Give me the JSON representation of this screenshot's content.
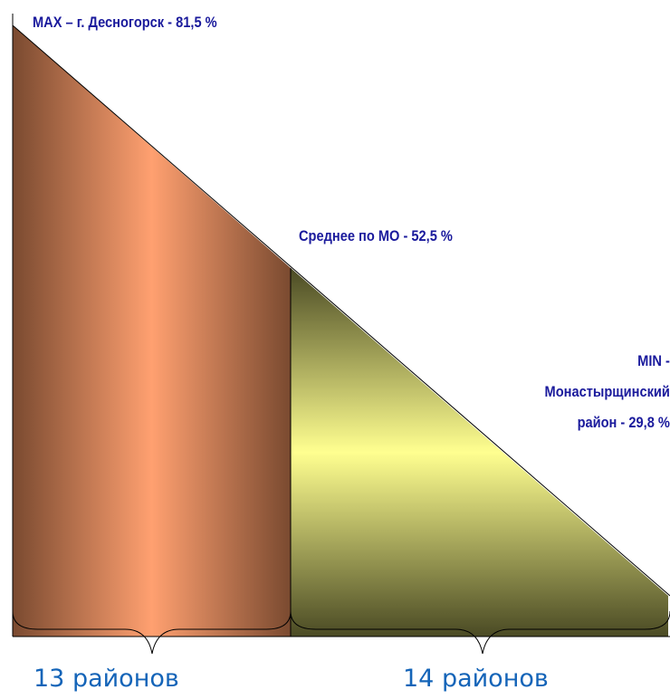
{
  "labels": {
    "max": "MAX – г. Десногорск - 81,5 %",
    "average": "Среднее по МО - 52,5 %",
    "min_lines": [
      "MIN -",
      "Монастырщинский",
      "район - 29,8 %"
    ]
  },
  "groups": {
    "left_count": "13 районов",
    "right_count": "14 районов"
  },
  "colors": {
    "label_text": "#1a1a9c",
    "count_text": "#1464b8",
    "left_fill_center": "#ffa070",
    "left_fill_edge": "#7a4a30",
    "right_fill_center": "#ffff90",
    "right_fill_edge": "#4a4a24"
  }
}
